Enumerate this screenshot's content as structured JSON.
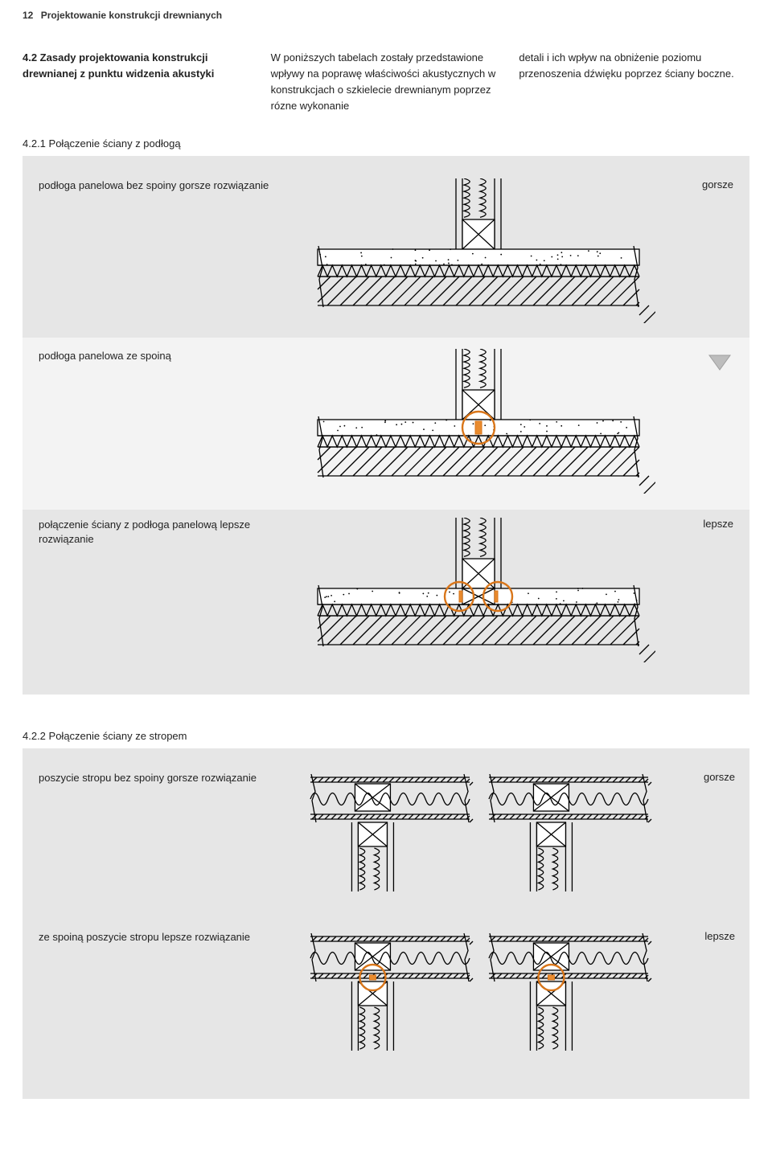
{
  "page": {
    "number": "12",
    "chapter": "Projektowanie konstrukcji drewnianych"
  },
  "section": {
    "num_title": "4.2 Zasady projektowania konstrukcji drewnianej z punktu widzenia akustyki",
    "para1": "W poniższych tabelach zostały przedstawione wpływy na poprawę właściwości akustycznych w konstrukcjach o szkielecie drewnianym poprzez rózne wykonanie",
    "para2": "detali i ich wpływ na obniżenie poziomu przenoszenia dźwięku poprzez ściany boczne."
  },
  "sub421": {
    "heading": "4.2.1 Połączenie ściany z podłogą",
    "rows": [
      {
        "caption": "podłoga panelowa bez spoiny gorsze rozwiązanie",
        "rating": "gorsze"
      },
      {
        "caption": "podłoga panelowa ze spoiną",
        "rating": ""
      },
      {
        "caption": "połączenie ściany z podłoga panelową lepsze rozwiązanie",
        "rating": "lepsze"
      }
    ]
  },
  "sub422": {
    "heading": "4.2.2 Połączenie ściany ze stropem",
    "rows": [
      {
        "caption": "poszycie stropu bez spoiny gorsze rozwiązanie",
        "rating": "gorsze"
      },
      {
        "caption": "ze spoiną poszycie stropu lepsze rozwiązanie",
        "rating": "lepsze"
      }
    ]
  },
  "style": {
    "stroke": "#000000",
    "accent": "#e98b2e",
    "accent_stroke": "#d9761a",
    "panel_bg": "#e6e6e6",
    "inset_bg": "#f3f3f3",
    "hatch_gap": 14,
    "stroke_w": 1.3,
    "accent_w": 2.4
  }
}
